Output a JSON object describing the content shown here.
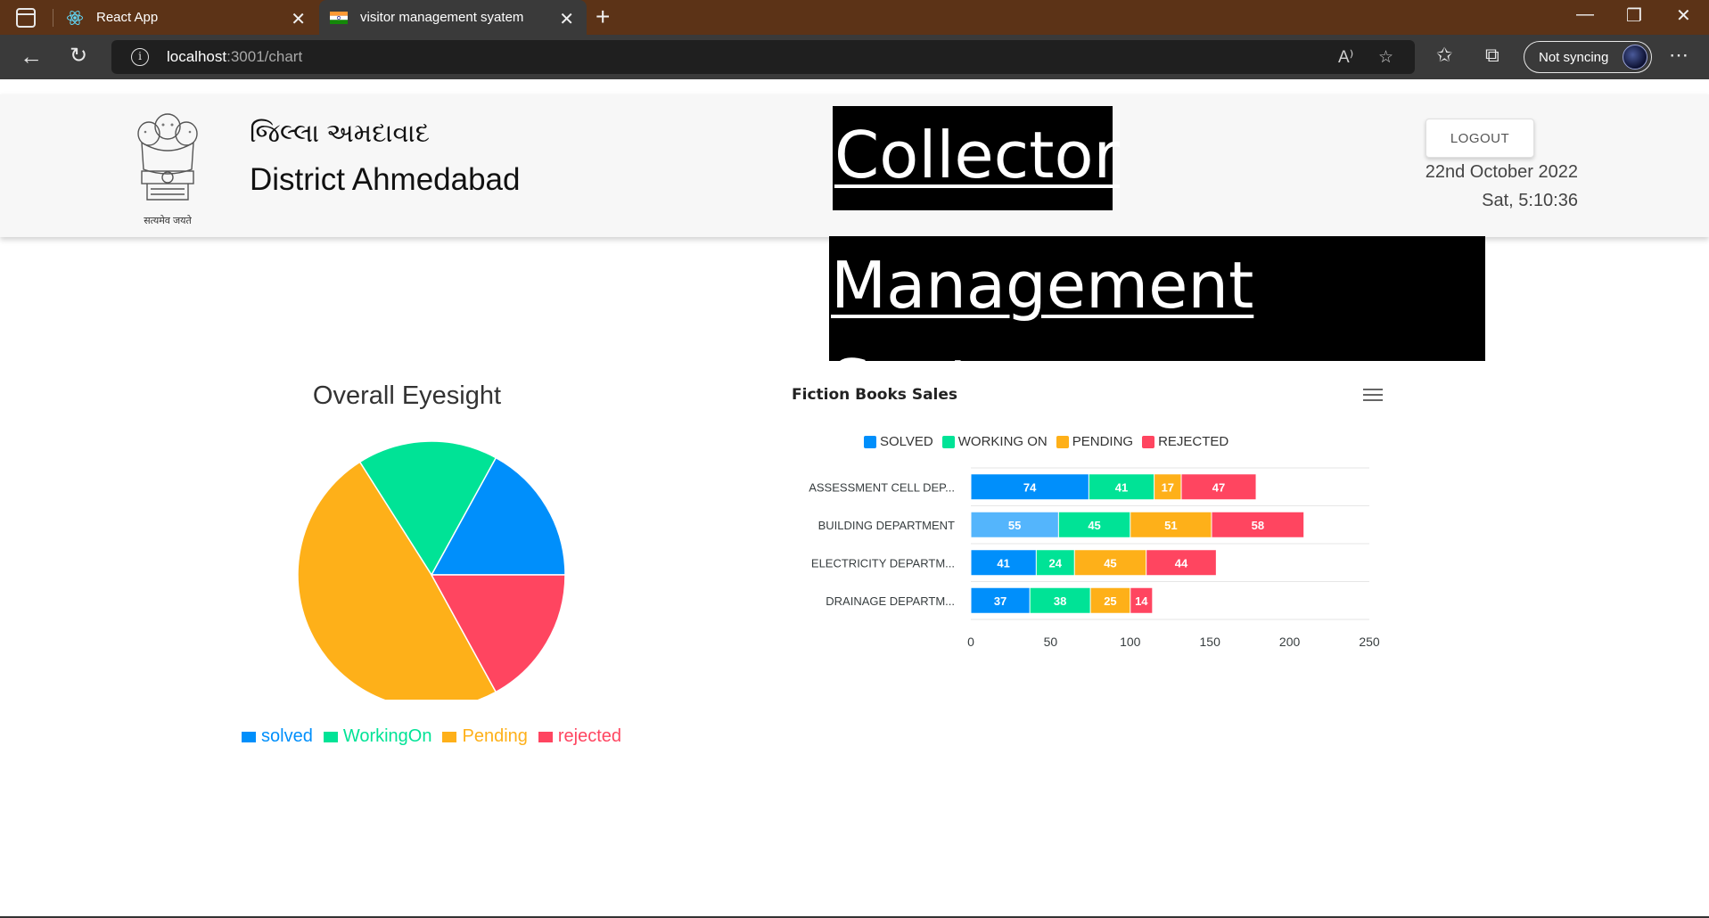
{
  "browser": {
    "tabs": [
      {
        "label": "React App",
        "icon": "react-icon",
        "active": false
      },
      {
        "label": "visitor management syatem",
        "icon": "india-flag-icon",
        "active": true
      }
    ],
    "url_host": "localhost",
    "url_path": ":3001/chart",
    "sync_label": "Not syncing",
    "read_aloud_label": "A⁾"
  },
  "header": {
    "gujarati_title": "જિલ્લા અમદાવાદ",
    "english_title": "District Ahmedabad",
    "emblem_caption": "सत्यमेव जयते",
    "logout_label": "LOGOUT",
    "date": "22nd October 2022",
    "time": "Sat, 5:10:36",
    "banner_line1": "Collector",
    "banner_line2": "Management Syatem"
  },
  "colors": {
    "solved": "#008ffb",
    "working": "#00e396",
    "pending": "#feb019",
    "rejected": "#ff4560"
  },
  "chart_data": [
    {
      "type": "pie",
      "title": "Overall Eyesight",
      "labels": [
        "solved",
        "WorkingOn",
        "Pending",
        "rejected"
      ],
      "values": [
        17,
        17,
        49,
        17
      ]
    },
    {
      "type": "bar",
      "orientation": "horizontal",
      "stacked": true,
      "title": "Fiction Books Sales",
      "categories": [
        "ASSESSMENT CELL DEP...",
        "BUILDING DEPARTMENT",
        "ELECTRICITY DEPARTM...",
        "DRAINAGE DEPARTM..."
      ],
      "series": [
        {
          "name": "SOLVED",
          "values": [
            74,
            55,
            41,
            37
          ]
        },
        {
          "name": "WORKING ON",
          "values": [
            41,
            45,
            24,
            38
          ]
        },
        {
          "name": "PENDING",
          "values": [
            17,
            51,
            45,
            25
          ]
        },
        {
          "name": "REJECTED",
          "values": [
            47,
            58,
            44,
            14
          ]
        }
      ],
      "xlim": [
        0,
        250
      ],
      "xticks": [
        "0",
        "50",
        "100",
        "150",
        "200",
        "250"
      ],
      "legend_position": "top"
    }
  ]
}
